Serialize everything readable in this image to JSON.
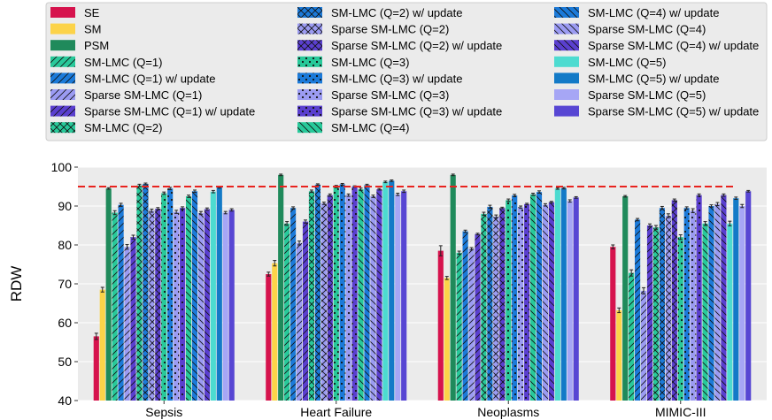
{
  "chart_data": {
    "type": "bar",
    "ylabel": "RDW",
    "xlabel": "",
    "ylim": [
      40,
      100
    ],
    "yticks": [
      40,
      50,
      60,
      70,
      80,
      90,
      100
    ],
    "grid": true,
    "legend_placement": "top",
    "reference_line": {
      "value": 95,
      "color": "#e8231f",
      "style": "dashed"
    },
    "categories": [
      "Sepsis",
      "Heart Failure",
      "Neoplasms",
      "MIMIC-III"
    ],
    "series": [
      {
        "name": "SE",
        "color": "#d6134d",
        "pattern": "none",
        "values": [
          56.5,
          72.5,
          78.5,
          79.5
        ],
        "errors": [
          0.8,
          0.5,
          1.3,
          0.5
        ]
      },
      {
        "name": "SM",
        "color": "#fcd349",
        "pattern": "none",
        "values": [
          68.5,
          75.3,
          71.5,
          63.2
        ],
        "errors": [
          0.6,
          0.7,
          0.4,
          0.6
        ]
      },
      {
        "name": "PSM",
        "color": "#1f8a5b",
        "pattern": "none",
        "values": [
          94.5,
          98.0,
          98.0,
          92.5
        ],
        "errors": [
          0.2,
          0.2,
          0.2,
          0.2
        ]
      },
      {
        "name": "SM-LMC (Q=1)",
        "color": "#28c99a",
        "pattern": "diag",
        "values": [
          88.3,
          85.5,
          78.0,
          72.8
        ],
        "errors": [
          0.5,
          0.5,
          0.4,
          0.8
        ]
      },
      {
        "name": "SM-LMC (Q=1) w/ update",
        "color": "#1b7ad9",
        "pattern": "diag",
        "values": [
          90.3,
          89.5,
          83.5,
          86.5
        ],
        "errors": [
          0.4,
          0.3,
          0.3,
          0.3
        ]
      },
      {
        "name": "Sparse SM-LMC (Q=1)",
        "color": "#9b9bf2",
        "pattern": "diag",
        "values": [
          79.5,
          80.5,
          79.0,
          68.2
        ],
        "errors": [
          0.6,
          0.5,
          0.3,
          0.8
        ]
      },
      {
        "name": "Sparse SM-LMC (Q=1) w/ update",
        "color": "#5a3fcf",
        "pattern": "diag",
        "values": [
          82.0,
          86.0,
          82.8,
          85.0
        ],
        "errors": [
          0.5,
          0.4,
          0.2,
          0.4
        ]
      },
      {
        "name": "SM-LMC (Q=2)",
        "color": "#28c99a",
        "pattern": "cross",
        "values": [
          95.3,
          93.8,
          88.0,
          84.5
        ],
        "errors": [
          0.3,
          0.3,
          0.4,
          0.5
        ]
      },
      {
        "name": "SM-LMC (Q=2) w/ update",
        "color": "#1b7ad9",
        "pattern": "cross",
        "values": [
          95.7,
          95.5,
          89.8,
          89.5
        ],
        "errors": [
          0.2,
          0.2,
          0.4,
          0.4
        ]
      },
      {
        "name": "Sparse SM-LMC (Q=2)",
        "color": "#9b9bf2",
        "pattern": "cross",
        "values": [
          88.8,
          90.7,
          87.3,
          87.5
        ],
        "errors": [
          0.4,
          0.3,
          0.4,
          0.5
        ]
      },
      {
        "name": "Sparse SM-LMC (Q=2) w/ update",
        "color": "#5a3fcf",
        "pattern": "cross",
        "values": [
          89.3,
          92.8,
          89.5,
          91.5
        ],
        "errors": [
          0.3,
          0.3,
          0.2,
          0.3
        ]
      },
      {
        "name": "SM-LMC (Q=3)",
        "color": "#28c99a",
        "pattern": "dots",
        "values": [
          93.3,
          95.0,
          91.5,
          82.0
        ],
        "errors": [
          0.3,
          0.3,
          0.3,
          0.6
        ]
      },
      {
        "name": "SM-LMC (Q=3) w/ update",
        "color": "#1b7ad9",
        "pattern": "dots",
        "values": [
          94.5,
          95.6,
          92.7,
          89.5
        ],
        "errors": [
          0.3,
          0.2,
          0.3,
          0.3
        ]
      },
      {
        "name": "Sparse SM-LMC (Q=3)",
        "color": "#9b9bf2",
        "pattern": "dots",
        "values": [
          88.5,
          92.8,
          89.7,
          88.8
        ],
        "errors": [
          0.4,
          0.3,
          0.3,
          0.5
        ]
      },
      {
        "name": "Sparse SM-LMC (Q=3) w/ update",
        "color": "#5a3fcf",
        "pattern": "dots",
        "values": [
          89.5,
          95.0,
          90.5,
          92.8
        ],
        "errors": [
          0.3,
          0.2,
          0.2,
          0.3
        ]
      },
      {
        "name": "SM-LMC (Q=4)",
        "color": "#28c99a",
        "pattern": "backdiag",
        "values": [
          92.5,
          94.3,
          93.0,
          85.5
        ],
        "errors": [
          0.3,
          0.3,
          0.3,
          0.5
        ]
      },
      {
        "name": "SM-LMC (Q=4) w/ update",
        "color": "#1b7ad9",
        "pattern": "backdiag",
        "values": [
          93.8,
          95.4,
          93.6,
          90.0
        ],
        "errors": [
          0.3,
          0.2,
          0.3,
          0.3
        ]
      },
      {
        "name": "Sparse SM-LMC (Q=4)",
        "color": "#9b9bf2",
        "pattern": "backdiag",
        "values": [
          88.2,
          92.5,
          90.3,
          90.5
        ],
        "errors": [
          0.4,
          0.3,
          0.3,
          0.4
        ]
      },
      {
        "name": "Sparse SM-LMC (Q=4) w/ update",
        "color": "#5a3fcf",
        "pattern": "backdiag",
        "values": [
          89.2,
          94.3,
          91.0,
          92.8
        ],
        "errors": [
          0.3,
          0.2,
          0.2,
          0.3
        ]
      },
      {
        "name": "SM-LMC (Q=5)",
        "color": "#4ddbd0",
        "pattern": "none",
        "values": [
          93.7,
          96.2,
          94.5,
          85.5
        ],
        "errors": [
          0.3,
          0.2,
          0.2,
          0.6
        ]
      },
      {
        "name": "SM-LMC (Q=5) w/ update",
        "color": "#137ac7",
        "pattern": "none",
        "values": [
          94.8,
          96.5,
          94.6,
          92.0
        ],
        "errors": [
          0.2,
          0.2,
          0.2,
          0.3
        ]
      },
      {
        "name": "Sparse SM-LMC (Q=5)",
        "color": "#a6a6f5",
        "pattern": "none",
        "values": [
          88.3,
          93.0,
          91.3,
          90.0
        ],
        "errors": [
          0.3,
          0.3,
          0.3,
          0.4
        ]
      },
      {
        "name": "Sparse SM-LMC (Q=5) w/ update",
        "color": "#5746d3",
        "pattern": "none",
        "values": [
          89.0,
          93.8,
          92.2,
          93.8
        ],
        "errors": [
          0.3,
          0.3,
          0.2,
          0.2
        ]
      }
    ]
  }
}
